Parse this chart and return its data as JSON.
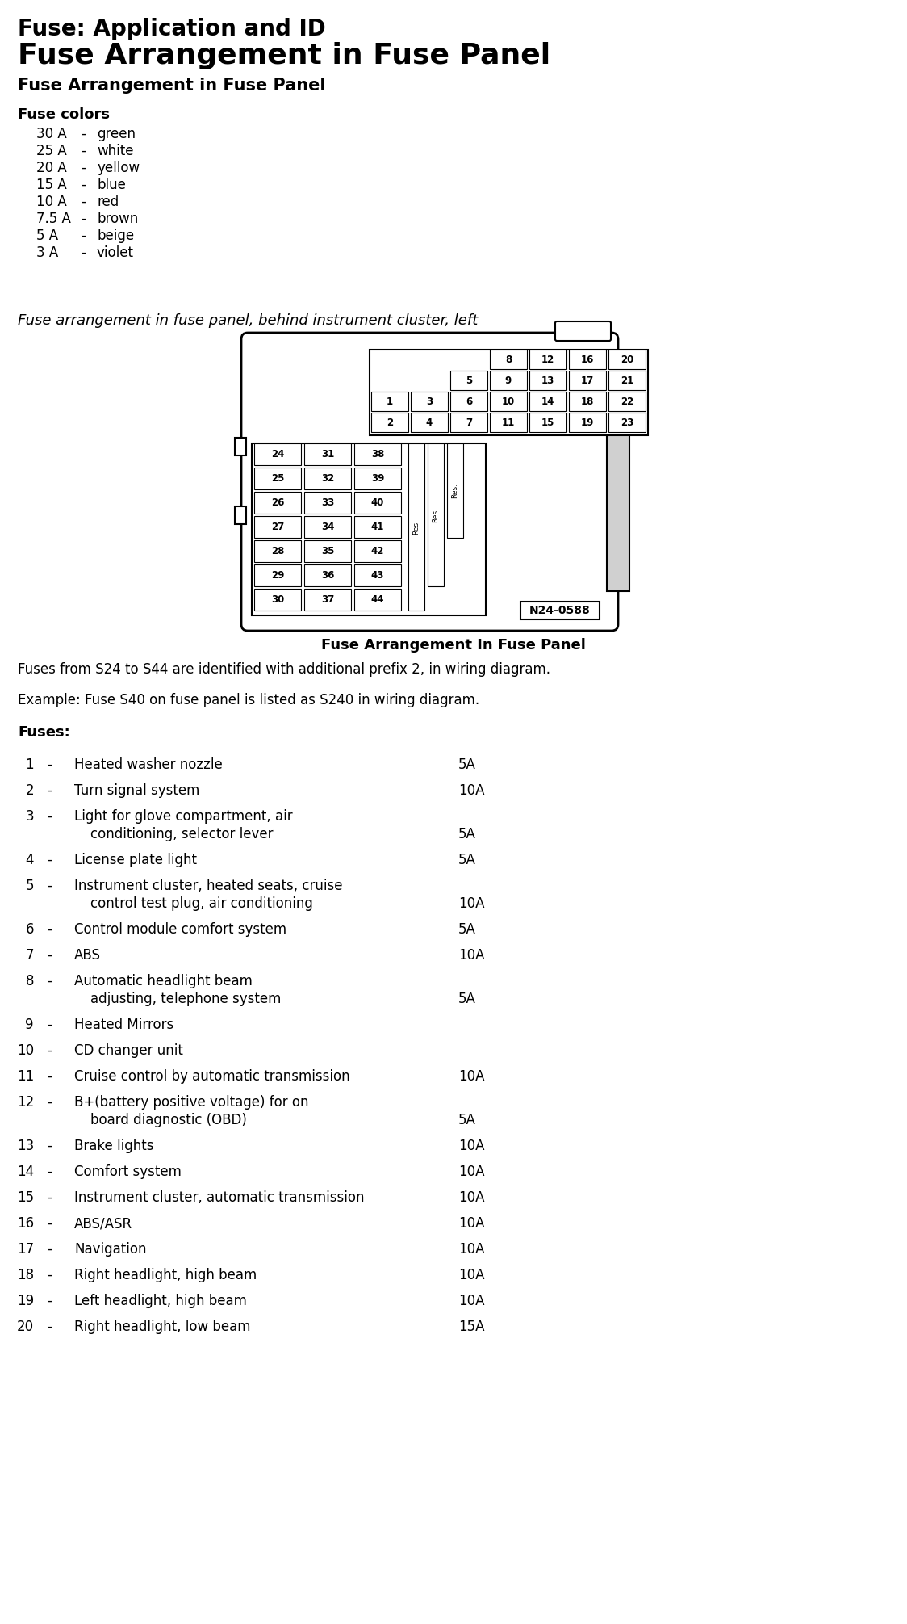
{
  "title1": "Fuse: Application and ID",
  "title2": "Fuse Arrangement in Fuse Panel",
  "title3": "Fuse Arrangement in Fuse Panel",
  "fuse_colors_header": "Fuse colors",
  "fuse_colors": [
    [
      "30 A",
      "-",
      "green"
    ],
    [
      "25 A",
      "-",
      "white"
    ],
    [
      "20 A",
      "-",
      "yellow"
    ],
    [
      "15 A",
      "-",
      "blue"
    ],
    [
      "10 A",
      "-",
      "red"
    ],
    [
      "7.5 A",
      "-",
      "brown"
    ],
    [
      "5 A",
      "-",
      "beige"
    ],
    [
      "3 A",
      "-",
      "violet"
    ]
  ],
  "diagram_subtitle": "Fuse arrangement in fuse panel, behind instrument cluster, left",
  "diagram_caption": "Fuse Arrangement In Fuse Panel",
  "diagram_note1": "Fuses from S24 to S44 are identified with additional prefix 2, in wiring diagram.",
  "diagram_note2": "Example: Fuse S40 on fuse panel is listed as S240 in wiring diagram.",
  "fuses_header": "Fuses:",
  "fuses": [
    {
      "num": "1",
      "desc": "Heated washer nozzle",
      "desc2": "",
      "amp": "5A"
    },
    {
      "num": "2",
      "desc": "Turn signal system",
      "desc2": "",
      "amp": "10A"
    },
    {
      "num": "3",
      "desc": "Light for glove compartment, air",
      "desc2": "conditioning, selector lever",
      "amp": "5A"
    },
    {
      "num": "4",
      "desc": "License plate light",
      "desc2": "",
      "amp": "5A"
    },
    {
      "num": "5",
      "desc": "Instrument cluster, heated seats, cruise",
      "desc2": "control test plug, air conditioning",
      "amp": "10A"
    },
    {
      "num": "6",
      "desc": "Control module comfort system",
      "desc2": "",
      "amp": "5A"
    },
    {
      "num": "7",
      "desc": "ABS",
      "desc2": "",
      "amp": "10A"
    },
    {
      "num": "8",
      "desc": "Automatic headlight beam",
      "desc2": "adjusting, telephone system",
      "amp": "5A"
    },
    {
      "num": "9",
      "desc": "Heated Mirrors",
      "desc2": "",
      "amp": ""
    },
    {
      "num": "10",
      "desc": "CD changer unit",
      "desc2": "",
      "amp": ""
    },
    {
      "num": "11",
      "desc": "Cruise control by automatic transmission",
      "desc2": "",
      "amp": "10A"
    },
    {
      "num": "12",
      "desc": "B+(battery positive voltage) for on",
      "desc2": "board diagnostic (OBD)",
      "amp": "5A"
    },
    {
      "num": "13",
      "desc": "Brake lights",
      "desc2": "",
      "amp": "10A"
    },
    {
      "num": "14",
      "desc": "Comfort system",
      "desc2": "",
      "amp": "10A"
    },
    {
      "num": "15",
      "desc": "Instrument cluster, automatic transmission",
      "desc2": "",
      "amp": "10A"
    },
    {
      "num": "16",
      "desc": "ABS/ASR",
      "desc2": "",
      "amp": "10A"
    },
    {
      "num": "17",
      "desc": "Navigation",
      "desc2": "",
      "amp": "10A"
    },
    {
      "num": "18",
      "desc": "Right headlight, high beam",
      "desc2": "",
      "amp": "10A"
    },
    {
      "num": "19",
      "desc": "Left headlight, high beam",
      "desc2": "",
      "amp": "10A"
    },
    {
      "num": "20",
      "desc": "Right headlight, low beam",
      "desc2": "",
      "amp": "15A"
    }
  ],
  "bg_color": "#ffffff"
}
